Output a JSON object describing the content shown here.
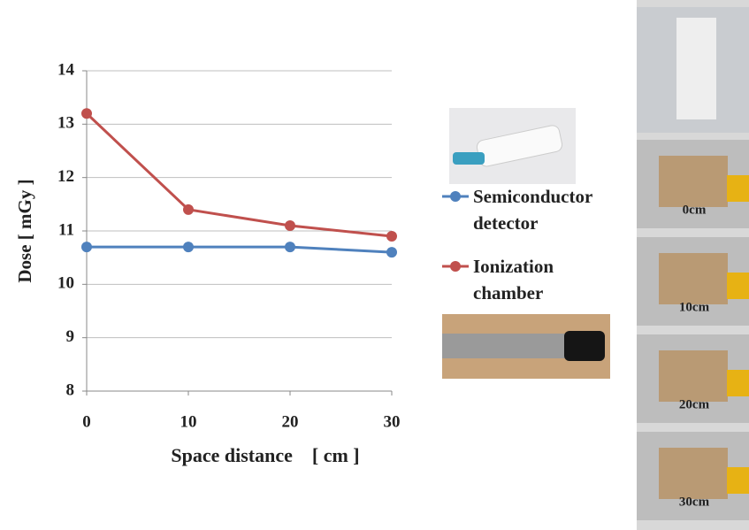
{
  "chart_data": {
    "type": "line",
    "xlabel": "Space distance    [ cm ]",
    "ylabel": "Dose [ mGy ]",
    "x": [
      0,
      10,
      20,
      30
    ],
    "series": [
      {
        "name": "Semiconductor detector",
        "color": "#4f81bd",
        "values": [
          10.7,
          10.7,
          10.7,
          10.6
        ]
      },
      {
        "name": "Ionization chamber",
        "color": "#c0504d",
        "values": [
          13.2,
          11.4,
          11.1,
          10.9
        ]
      }
    ],
    "xlim": [
      0,
      30
    ],
    "xticks": [
      0,
      10,
      20,
      30
    ],
    "ylim": [
      8,
      14
    ],
    "yticks": [
      8,
      9,
      10,
      11,
      12,
      13,
      14
    ],
    "grid": true
  },
  "photos": {
    "labels": [
      "0cm",
      "10cm",
      "20cm",
      "30cm"
    ]
  }
}
